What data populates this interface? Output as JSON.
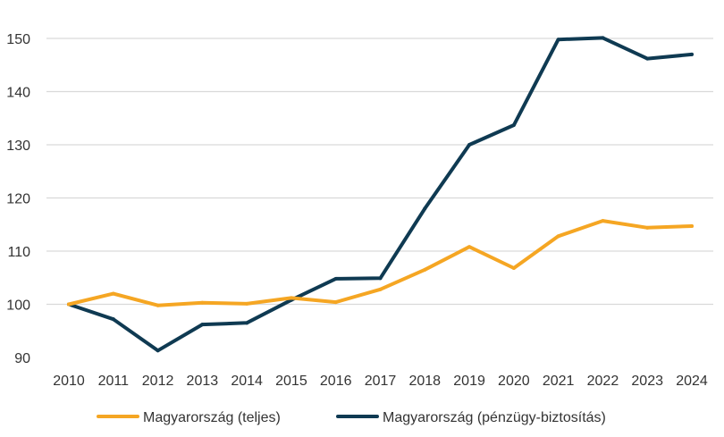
{
  "chart_data": {
    "type": "line",
    "title": "",
    "xlabel": "",
    "ylabel": "",
    "x": [
      "2010",
      "2011",
      "2012",
      "2013",
      "2014",
      "2015",
      "2016",
      "2017",
      "2018",
      "2019",
      "2020",
      "2021",
      "2022",
      "2023",
      "2024"
    ],
    "yticks": [
      "90",
      "100",
      "110",
      "120",
      "130",
      "140",
      "150"
    ],
    "ylim": [
      90,
      150
    ],
    "grid": true,
    "legend_position": "bottom",
    "series": [
      {
        "name": "Magyarország (teljes)",
        "color": "#f5a623",
        "values": [
          100.0,
          102.0,
          99.8,
          100.3,
          100.1,
          101.2,
          100.4,
          102.8,
          106.5,
          110.8,
          106.8,
          112.8,
          115.7,
          114.4,
          114.7
        ]
      },
      {
        "name": "Magyarország (pénzügy-biztosítás)",
        "color": "#0f3a52",
        "values": [
          100.0,
          97.2,
          91.3,
          96.2,
          96.5,
          100.8,
          104.8,
          104.9,
          118.0,
          130.0,
          133.7,
          149.8,
          150.1,
          146.2,
          147.0
        ]
      }
    ]
  }
}
